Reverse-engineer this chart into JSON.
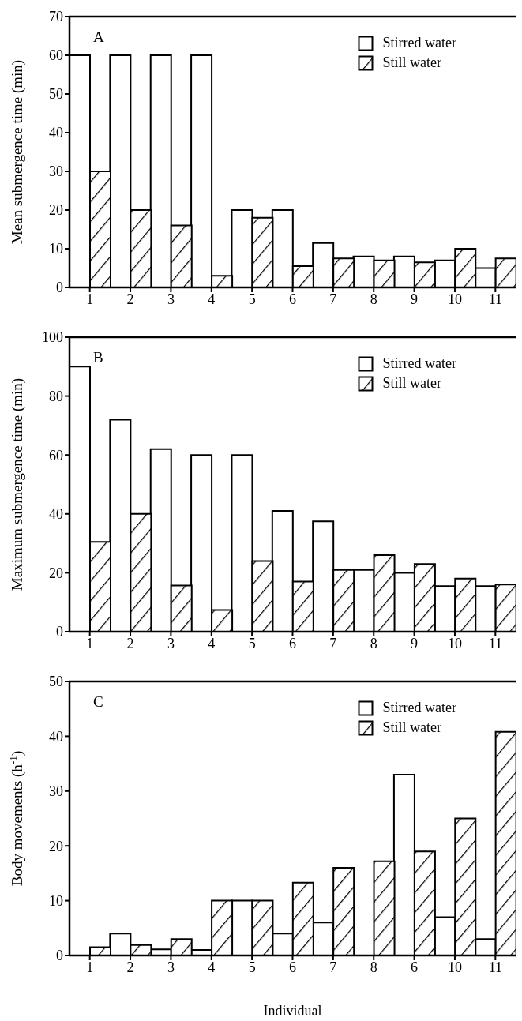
{
  "chart_data": [
    {
      "type": "bar",
      "annotations": [
        "A"
      ],
      "ylabel": "Mean submergence time (min)",
      "categories": [
        "1",
        "2",
        "3",
        "4",
        "5",
        "6",
        "7",
        "8",
        "9",
        "10",
        "11"
      ],
      "series": [
        {
          "name": "Stirred water",
          "color": "#ffffff",
          "values": [
            60,
            60,
            60,
            60,
            20,
            20,
            11.5,
            8,
            8,
            7,
            5
          ]
        },
        {
          "name": "Still water",
          "color": "#000000",
          "values": [
            30,
            20,
            16,
            3,
            18,
            5.5,
            7.5,
            7,
            6.5,
            10,
            7.5
          ]
        }
      ],
      "ylim": [
        0,
        70
      ],
      "yticks": [
        0,
        10,
        20,
        30,
        40,
        50,
        60,
        70
      ],
      "grid": false,
      "legend": "top right"
    },
    {
      "type": "bar",
      "annotations": [
        "B"
      ],
      "ylabel": "Maximum submergence time (min)",
      "categories": [
        "1",
        "2",
        "3",
        "4",
        "5",
        "6",
        "7",
        "8",
        "9",
        "10",
        "11"
      ],
      "series": [
        {
          "name": "Stirred water",
          "color": "#ffffff",
          "values": [
            90,
            72,
            62,
            60,
            60,
            41,
            37.5,
            21,
            20,
            15.5,
            15.5
          ]
        },
        {
          "name": "Still water",
          "color": "#000000",
          "values": [
            30.5,
            40,
            15.7,
            7.4,
            24,
            17,
            21,
            26,
            23,
            18,
            16
          ]
        }
      ],
      "ylim": [
        0,
        100
      ],
      "yticks": [
        0,
        20,
        40,
        60,
        80,
        100
      ],
      "grid": false,
      "legend": "top right"
    },
    {
      "type": "bar",
      "annotations": [
        "C"
      ],
      "ylabel": "Body movements (h$^{-1}$)",
      "xlabel": "Individual",
      "categories": [
        "1",
        "2",
        "3",
        "4",
        "5",
        "6",
        "7",
        "8",
        "6",
        "10",
        "11"
      ],
      "series": [
        {
          "name": "Stirred water",
          "color": "#ffffff",
          "values": [
            0,
            4,
            1.1,
            1,
            10,
            4,
            6,
            0,
            33,
            7,
            3
          ]
        },
        {
          "name": "Still water",
          "color": "#000000",
          "values": [
            1.5,
            1.9,
            3,
            10,
            10,
            13.3,
            16,
            17.2,
            19,
            25,
            40.8
          ]
        }
      ],
      "ylim": [
        0,
        50
      ],
      "yticks": [
        0,
        10,
        20,
        30,
        40,
        50
      ],
      "grid": false,
      "legend": "top right"
    }
  ]
}
